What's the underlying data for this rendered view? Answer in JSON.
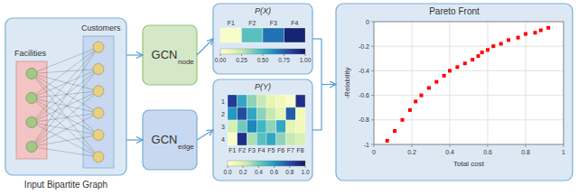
{
  "chart_data": [
    {
      "type": "diagram",
      "title": "Input Bipartite Graph",
      "annotations": [
        "Facilities",
        "Customers",
        "GCN",
        "node",
        "GCN",
        "edge"
      ]
    },
    {
      "type": "heatmap",
      "title": "P(X)",
      "categories": [
        "F1",
        "F2",
        "F3",
        "F4"
      ],
      "values": [
        [
          0.05,
          0.45,
          0.7,
          0.95
        ]
      ],
      "color_range": [
        0,
        1
      ],
      "color_ticks": [
        {
          "value": 0,
          "label": "0.00"
        },
        0.25,
        {
          "value": 0.5,
          "label": "0.50"
        },
        0.75,
        {
          "value": 1,
          "label": "1.00"
        }
      ]
    },
    {
      "type": "heatmap",
      "title": "P(Y)",
      "categories": [
        "F1",
        "F2",
        "F3",
        "F4",
        "F5",
        "F6",
        "F7",
        "F8"
      ],
      "y_categories": [
        "1",
        "2",
        "3",
        "4"
      ],
      "values": [
        [
          0.85,
          0.55,
          0.35,
          0.25,
          0.15,
          0.1,
          0.05,
          0.9
        ],
        [
          0.6,
          0.8,
          0.55,
          0.35,
          0.25,
          0.15,
          0.75,
          0.1
        ],
        [
          0.2,
          0.4,
          0.65,
          0.5,
          0.35,
          0.55,
          0.15,
          0.1
        ],
        [
          0.05,
          0.9,
          0.3,
          0.45,
          0.55,
          0.35,
          0.25,
          0.2
        ]
      ],
      "color_range": [
        0,
        1
      ],
      "color_ticks": [
        {
          "value": 0,
          "label": "0.0"
        },
        0.2,
        0.4,
        0.6,
        0.8,
        {
          "value": 1,
          "label": "1.0"
        }
      ]
    },
    {
      "type": "scatter",
      "title": "Pareto Front",
      "x_label": "Total cost",
      "y_label": "-Relability",
      "x": [
        0.07,
        0.11,
        0.15,
        0.19,
        0.22,
        0.25,
        0.29,
        0.33,
        0.37,
        0.4,
        0.44,
        0.48,
        0.52,
        0.55,
        0.57,
        0.6,
        0.63,
        0.67,
        0.71,
        0.76,
        0.8,
        0.85,
        0.88,
        0.92
      ],
      "values": [
        -0.97,
        -0.89,
        -0.8,
        -0.72,
        -0.65,
        -0.6,
        -0.54,
        -0.49,
        -0.44,
        -0.4,
        -0.37,
        -0.34,
        -0.31,
        -0.28,
        -0.25,
        -0.23,
        -0.2,
        -0.18,
        -0.15,
        -0.13,
        -0.1,
        -0.09,
        -0.07,
        -0.05
      ],
      "color": "red",
      "marker": "square",
      "xlim": [
        0,
        1
      ],
      "xticks": [
        0,
        0.2,
        0.4,
        0.6,
        0.8,
        1
      ],
      "ylim": [
        -1,
        0
      ],
      "yticks": [
        -1,
        -0.8,
        -0.6,
        -0.4,
        -0.2,
        0
      ],
      "grid": true
    }
  ]
}
